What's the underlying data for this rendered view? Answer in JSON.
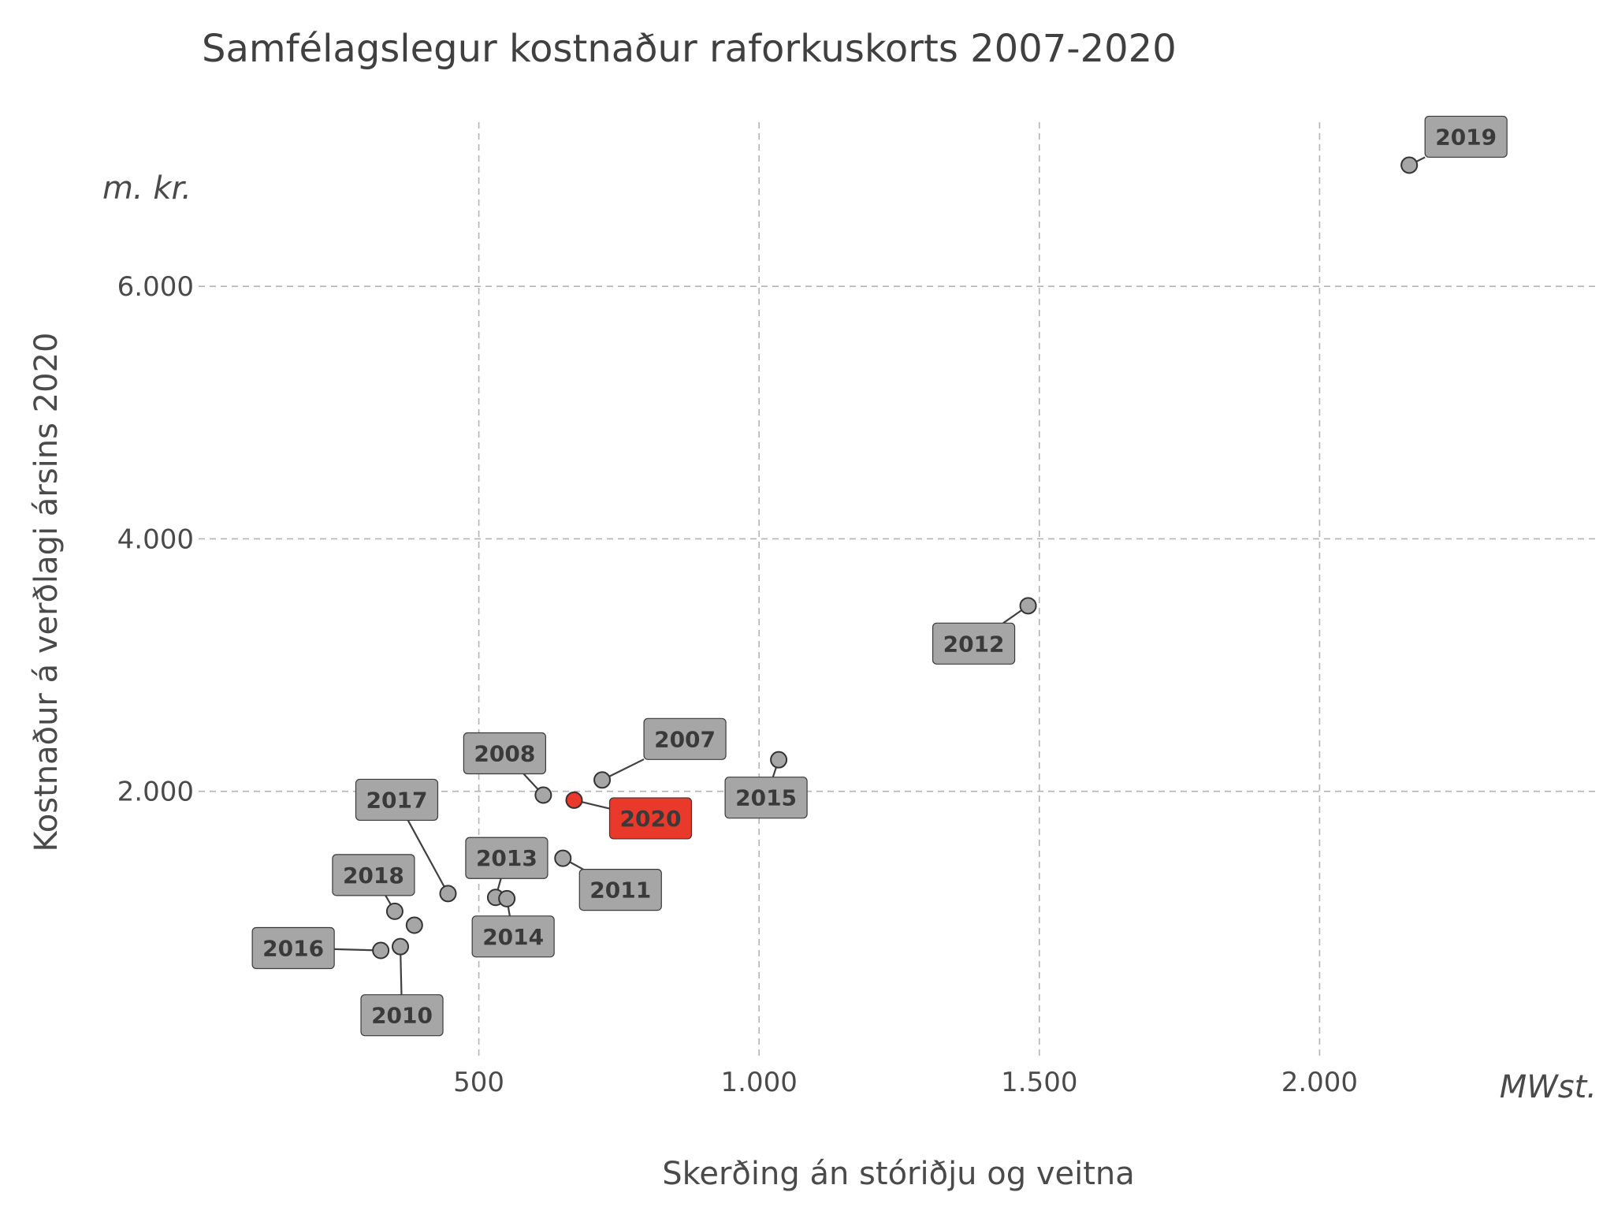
{
  "chart_data": {
    "type": "scatter",
    "title": "Samfélagslegur kostnaður raforkuskorts 2007-2020",
    "xlabel": "Skerðing án stóriðju og veitna",
    "ylabel": "Kostnaður á verðlagi ársins 2020",
    "x_unit": "MWst.",
    "y_unit": "m. kr.",
    "xlim": [
      0,
      2500
    ],
    "ylim": [
      -100,
      7300
    ],
    "x_ticks": [
      {
        "value": 500,
        "label": "500"
      },
      {
        "value": 1000,
        "label": "1.000"
      },
      {
        "value": 1500,
        "label": "1.500"
      },
      {
        "value": 2000,
        "label": "2.000"
      }
    ],
    "y_ticks": [
      {
        "value": 2000,
        "label": "2.000"
      },
      {
        "value": 4000,
        "label": "4.000"
      },
      {
        "value": 6000,
        "label": "6.000"
      }
    ],
    "grid": true,
    "colors": {
      "default_point": "#a6a6a6",
      "highlight_point": "#e8392a",
      "default_label": "#a6a6a6",
      "highlight_label": "#e8392a"
    },
    "points": [
      {
        "year": "2007",
        "x": 720,
        "y": 2090,
        "highlight": false
      },
      {
        "year": "2008",
        "x": 615,
        "y": 1970,
        "highlight": false
      },
      {
        "year": "2010",
        "x": 360,
        "y": 770,
        "highlight": false
      },
      {
        "year": "2011",
        "x": 650,
        "y": 1470,
        "highlight": false
      },
      {
        "year": "2012",
        "x": 1480,
        "y": 3470,
        "highlight": false
      },
      {
        "year": "2013",
        "x": 530,
        "y": 1160,
        "highlight": false
      },
      {
        "year": "2014",
        "x": 550,
        "y": 1150,
        "highlight": false
      },
      {
        "year": "2015",
        "x": 1035,
        "y": 2250,
        "highlight": false
      },
      {
        "year": "2016",
        "x": 325,
        "y": 740,
        "highlight": false
      },
      {
        "year": "2017",
        "x": 445,
        "y": 1190,
        "highlight": false
      },
      {
        "year": "2018",
        "x": 350,
        "y": 1050,
        "highlight": false
      },
      {
        "year": "",
        "x": 385,
        "y": 940,
        "highlight": false
      },
      {
        "year": "2019",
        "x": 2160,
        "y": 6960,
        "highlight": false
      },
      {
        "year": "2020",
        "x": 670,
        "y": 1930,
        "highlight": true
      }
    ]
  }
}
